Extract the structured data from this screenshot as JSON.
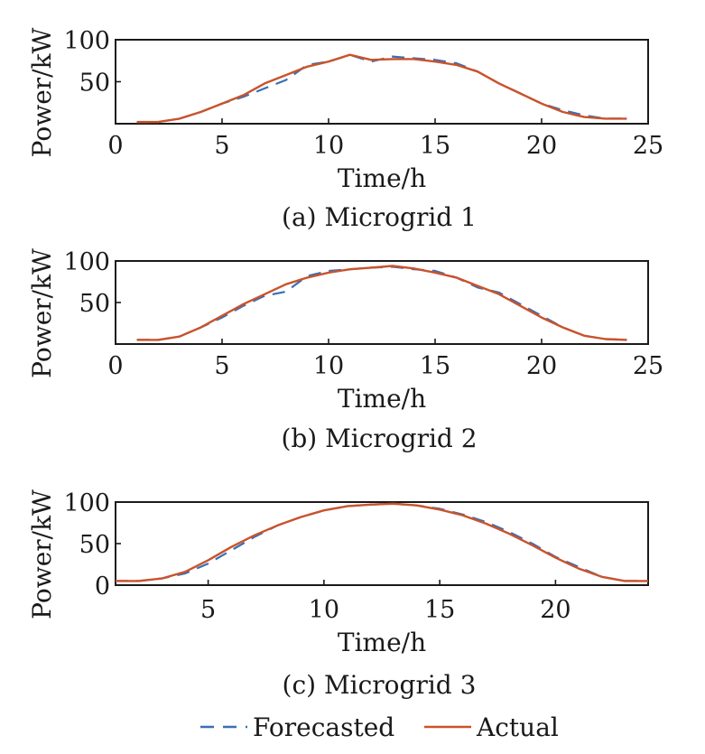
{
  "colors": {
    "forecasted": "#3a6fb5",
    "actual": "#c9532b"
  },
  "legend": {
    "forecasted": "Forecasted",
    "actual": "Actual",
    "placement": "bottom-center"
  },
  "chart_data": [
    {
      "type": "line",
      "title": "",
      "caption": "(a) Microgrid 1",
      "xlabel": "Time/h",
      "ylabel": "Power/kW",
      "xlim": [
        0,
        25
      ],
      "ylim": [
        0,
        100
      ],
      "xticks": [
        0,
        5,
        10,
        15,
        20,
        25
      ],
      "yticks": [
        50,
        100
      ],
      "grid": false,
      "x": [
        1,
        2,
        3,
        4,
        5,
        6,
        7,
        8,
        9,
        10,
        11,
        12,
        13,
        14,
        15,
        16,
        17,
        18,
        19,
        20,
        21,
        22,
        23,
        24
      ],
      "series": [
        {
          "name": "Forecasted",
          "style": "dashed",
          "values": [
            2,
            2,
            6,
            14,
            24,
            32,
            42,
            52,
            70,
            74,
            82,
            74,
            80,
            78,
            76,
            72,
            62,
            48,
            36,
            24,
            16,
            10,
            6,
            6
          ]
        },
        {
          "name": "Actual",
          "style": "solid",
          "values": [
            2,
            2,
            6,
            14,
            24,
            34,
            48,
            58,
            68,
            74,
            82,
            76,
            77,
            77,
            74,
            70,
            62,
            48,
            36,
            24,
            14,
            8,
            6,
            6
          ]
        }
      ]
    },
    {
      "type": "line",
      "title": "",
      "caption": "(b) Microgrid 2",
      "xlabel": "Time/h",
      "ylabel": "Power/kW",
      "xlim": [
        0,
        25
      ],
      "ylim": [
        0,
        100
      ],
      "xticks": [
        0,
        5,
        10,
        15,
        20,
        25
      ],
      "yticks": [
        50,
        100
      ],
      "grid": false,
      "x": [
        1,
        2,
        3,
        4,
        5,
        6,
        7,
        8,
        9,
        10,
        11,
        12,
        13,
        14,
        15,
        16,
        17,
        18,
        19,
        20,
        21,
        22,
        23,
        24
      ],
      "series": [
        {
          "name": "Forecasted",
          "style": "dashed",
          "values": [
            5,
            5,
            9,
            20,
            32,
            46,
            58,
            63,
            82,
            88,
            90,
            92,
            93,
            90,
            88,
            80,
            68,
            62,
            48,
            34,
            20,
            10,
            6,
            5
          ]
        },
        {
          "name": "Actual",
          "style": "solid",
          "values": [
            5,
            5,
            9,
            20,
            34,
            48,
            60,
            72,
            80,
            86,
            90,
            92,
            94,
            91,
            86,
            80,
            70,
            60,
            46,
            32,
            20,
            10,
            6,
            5
          ]
        }
      ]
    },
    {
      "type": "line",
      "title": "",
      "caption": "(c) Microgrid 3",
      "xlabel": "Time/h",
      "ylabel": "Power/kW",
      "xlim": [
        1,
        24
      ],
      "ylim": [
        0,
        100
      ],
      "xticks": [
        5,
        10,
        15,
        20
      ],
      "yticks": [
        0,
        50,
        100
      ],
      "grid": false,
      "x": [
        1,
        2,
        3,
        4,
        5,
        6,
        7,
        8,
        9,
        10,
        11,
        12,
        13,
        14,
        15,
        16,
        17,
        18,
        19,
        20,
        21,
        22,
        23,
        24
      ],
      "series": [
        {
          "name": "Forecasted",
          "style": "dashed",
          "values": [
            5,
            5,
            8,
            14,
            26,
            42,
            58,
            72,
            82,
            90,
            95,
            97,
            98,
            96,
            92,
            85,
            76,
            64,
            50,
            34,
            22,
            10,
            5,
            5
          ]
        },
        {
          "name": "Actual",
          "style": "solid",
          "values": [
            5,
            5,
            8,
            16,
            30,
            46,
            60,
            72,
            82,
            90,
            95,
            97,
            98,
            96,
            91,
            84,
            74,
            62,
            48,
            33,
            20,
            10,
            5,
            5
          ]
        }
      ]
    }
  ]
}
